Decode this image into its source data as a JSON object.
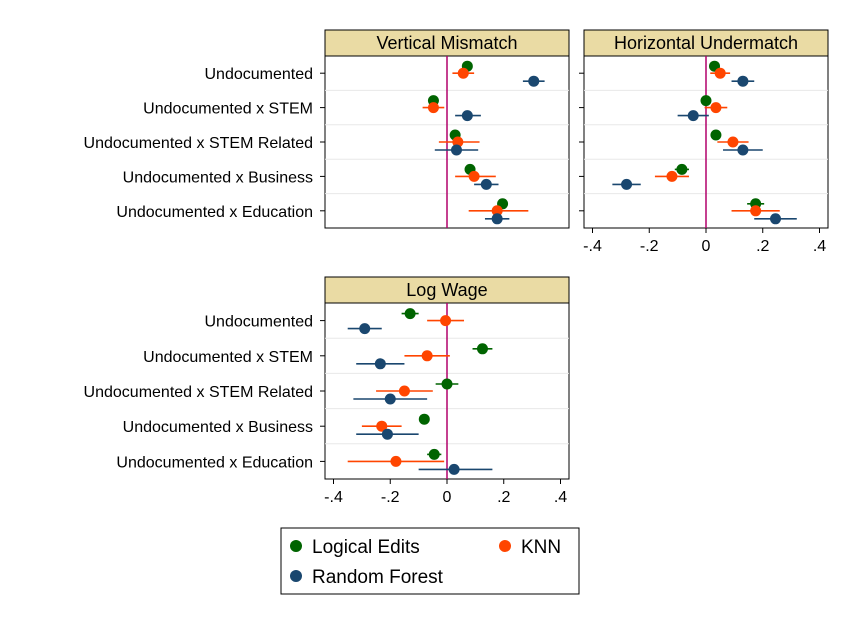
{
  "colors": {
    "logical_edits": "#006400",
    "knn": "#ff4500",
    "random_forest": "#1a476f",
    "zero_line": "#b2006b",
    "panel_header_fill": "#eadba4"
  },
  "legend": {
    "placement": "bottom",
    "items": [
      "Logical Edits",
      "KNN",
      "Random Forest"
    ]
  },
  "chart_data": [
    {
      "type": "scatter",
      "title": "Vertical Mismatch",
      "xlim": [
        -0.45,
        0.45
      ],
      "x_ticks": [],
      "categories": [
        "Undocumented",
        "Undocumented x STEM",
        "Undocumented x STEM Related",
        "Undocumented x Business",
        "Undocumented x Education"
      ],
      "series": [
        {
          "name": "Logical Edits",
          "values": [
            0.075,
            -0.05,
            0.03,
            0.085,
            0.205
          ],
          "ci_low": [
            0.06,
            -0.065,
            0.015,
            0.07,
            0.19
          ],
          "ci_high": [
            0.09,
            -0.035,
            0.045,
            0.1,
            0.22
          ]
        },
        {
          "name": "KNN",
          "values": [
            0.06,
            -0.05,
            0.04,
            0.1,
            0.185
          ],
          "ci_low": [
            0.02,
            -0.09,
            -0.03,
            0.03,
            0.08
          ],
          "ci_high": [
            0.1,
            -0.01,
            0.12,
            0.18,
            0.3
          ]
        },
        {
          "name": "Random Forest",
          "values": [
            0.32,
            0.075,
            0.035,
            0.145,
            0.185
          ],
          "ci_low": [
            0.28,
            0.03,
            -0.045,
            0.1,
            0.14
          ],
          "ci_high": [
            0.36,
            0.125,
            0.115,
            0.19,
            0.23
          ]
        }
      ]
    },
    {
      "type": "scatter",
      "title": "Horizontal Undermatch",
      "xlim": [
        -0.43,
        0.43
      ],
      "x_ticks": [
        "-.4",
        "-.2",
        "0",
        ".2",
        ".4"
      ],
      "x_tick_values": [
        -0.4,
        -0.2,
        0,
        0.2,
        0.4
      ],
      "categories": [
        "Undocumented",
        "Undocumented x STEM",
        "Undocumented x STEM Related",
        "Undocumented x Business",
        "Undocumented x Education"
      ],
      "series": [
        {
          "name": "Logical Edits",
          "values": [
            0.03,
            0.0,
            0.035,
            -0.085,
            0.175
          ],
          "ci_low": [
            0.015,
            -0.015,
            0.02,
            -0.11,
            0.145
          ],
          "ci_high": [
            0.045,
            0.015,
            0.05,
            -0.06,
            0.205
          ]
        },
        {
          "name": "KNN",
          "values": [
            0.05,
            0.035,
            0.095,
            -0.12,
            0.175
          ],
          "ci_low": [
            0.015,
            -0.005,
            0.04,
            -0.18,
            0.09
          ],
          "ci_high": [
            0.085,
            0.075,
            0.15,
            -0.06,
            0.26
          ]
        },
        {
          "name": "Random Forest",
          "values": [
            0.13,
            -0.045,
            0.13,
            -0.28,
            0.245
          ],
          "ci_low": [
            0.09,
            -0.1,
            0.06,
            -0.33,
            0.17
          ],
          "ci_high": [
            0.17,
            0.01,
            0.2,
            -0.23,
            0.32
          ]
        }
      ]
    },
    {
      "type": "scatter",
      "title": "Log Wage",
      "xlim": [
        -0.43,
        0.43
      ],
      "x_ticks": [
        "-.4",
        "-.2",
        "0",
        ".2",
        ".4"
      ],
      "x_tick_values": [
        -0.4,
        -0.2,
        0,
        0.2,
        0.4
      ],
      "categories": [
        "Undocumented",
        "Undocumented x STEM",
        "Undocumented x STEM Related",
        "Undocumented x Business",
        "Undocumented x Education"
      ],
      "series": [
        {
          "name": "Logical Edits",
          "values": [
            -0.13,
            0.125,
            0.0,
            -0.08,
            -0.045
          ],
          "ci_low": [
            -0.16,
            0.09,
            -0.04,
            -0.085,
            -0.07
          ],
          "ci_high": [
            -0.1,
            0.16,
            0.04,
            -0.075,
            -0.02
          ]
        },
        {
          "name": "KNN",
          "values": [
            -0.005,
            -0.07,
            -0.15,
            -0.23,
            -0.18
          ],
          "ci_low": [
            -0.07,
            -0.15,
            -0.25,
            -0.3,
            -0.35
          ],
          "ci_high": [
            0.06,
            0.01,
            -0.05,
            -0.16,
            -0.01
          ]
        },
        {
          "name": "Random Forest",
          "values": [
            -0.29,
            -0.235,
            -0.2,
            -0.21,
            0.025
          ],
          "ci_low": [
            -0.35,
            -0.32,
            -0.33,
            -0.32,
            -0.1
          ],
          "ci_high": [
            -0.23,
            -0.15,
            -0.07,
            -0.1,
            0.16
          ]
        }
      ]
    }
  ]
}
